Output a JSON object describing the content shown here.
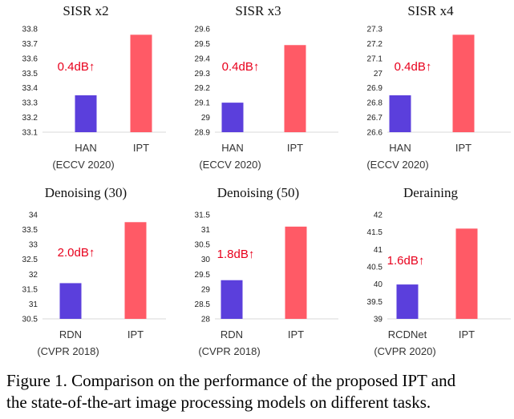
{
  "colors": {
    "baseline": "#5b3fdc",
    "ipt": "#ff5a66",
    "gain": "#e8001c",
    "axis": "#d9d9d9"
  },
  "chart_data": [
    {
      "type": "bar",
      "title": "SISR x2",
      "categories": [
        "HAN",
        "IPT"
      ],
      "sublabels": [
        "(ECCV 2020)",
        ""
      ],
      "values": [
        33.35,
        33.76
      ],
      "ylim": [
        33.1,
        33.8
      ],
      "yticks": [
        "33.1",
        "33.2",
        "33.3",
        "33.4",
        "33.5",
        "33.6",
        "33.7",
        "33.8"
      ],
      "annotation": "0.4dB↑",
      "grid": false
    },
    {
      "type": "bar",
      "title": "SISR x3",
      "categories": [
        "HAN",
        "IPT"
      ],
      "sublabels": [
        "(ECCV 2020)",
        ""
      ],
      "values": [
        29.1,
        29.49
      ],
      "ylim": [
        28.9,
        29.6
      ],
      "yticks": [
        "28.9",
        "29",
        "29.1",
        "29.2",
        "29.3",
        "29.4",
        "29.5",
        "29.6"
      ],
      "annotation": "0.4dB↑",
      "grid": false
    },
    {
      "type": "bar",
      "title": "SISR x4",
      "categories": [
        "HAN",
        "IPT"
      ],
      "sublabels": [
        "(ECCV 2020)",
        ""
      ],
      "values": [
        26.85,
        27.26
      ],
      "ylim": [
        26.6,
        27.3
      ],
      "yticks": [
        "26.6",
        "26.7",
        "26.8",
        "26.9",
        "27",
        "27.1",
        "27.2",
        "27.3"
      ],
      "annotation": "0.4dB↑",
      "grid": false
    },
    {
      "type": "bar",
      "title": "Denoising (30)",
      "categories": [
        "RDN",
        "IPT"
      ],
      "sublabels": [
        "(CVPR 2018)",
        ""
      ],
      "values": [
        31.7,
        33.75
      ],
      "ylim": [
        30.5,
        34
      ],
      "yticks": [
        "30.5",
        "31",
        "31.5",
        "32",
        "32.5",
        "33",
        "33.5",
        "34"
      ],
      "annotation": "2.0dB↑",
      "grid": false
    },
    {
      "type": "bar",
      "title": "Denoising (50)",
      "categories": [
        "RDN",
        "IPT"
      ],
      "sublabels": [
        "(CVPR 2018)",
        ""
      ],
      "values": [
        29.3,
        31.1
      ],
      "ylim": [
        28,
        31.5
      ],
      "yticks": [
        "28",
        "28.5",
        "29",
        "29.5",
        "30",
        "30.5",
        "31",
        "31.5"
      ],
      "annotation": "1.8dB↑",
      "grid": false
    },
    {
      "type": "bar",
      "title": "Deraining",
      "categories": [
        "RCDNet",
        "IPT"
      ],
      "sublabels": [
        "(CVPR 2020)",
        ""
      ],
      "values": [
        39.99,
        41.6
      ],
      "ylim": [
        39,
        42
      ],
      "yticks": [
        "39",
        "39.5",
        "40",
        "40.5",
        "41",
        "41.5",
        "42"
      ],
      "annotation": "1.6dB↑",
      "grid": false
    }
  ],
  "caption": {
    "line1": "Figure 1. Comparison on the performance of the proposed IPT and",
    "line2": "the state-of-the-art image processing models on different tasks."
  }
}
